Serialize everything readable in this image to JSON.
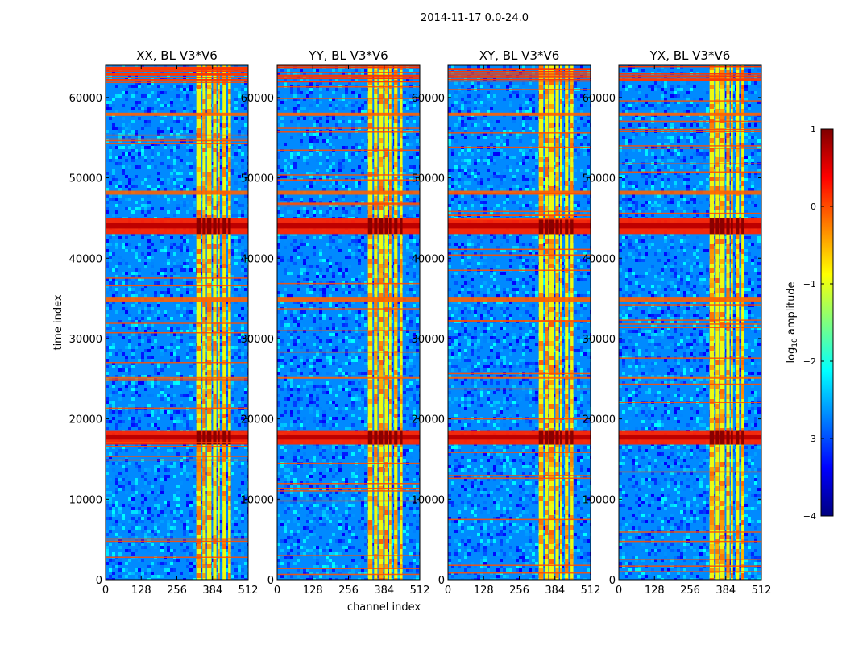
{
  "figure_title": "2014-11-17 0.0-24.0",
  "colormap": [
    "#00007f",
    "#0000ff",
    "#007fff",
    "#00ffff",
    "#7fff7f",
    "#ffff00",
    "#ff7f00",
    "#ff0000",
    "#7f0000"
  ],
  "chart_data": [
    {
      "type": "heatmap",
      "title": "XX, BL V3*V6",
      "xlabel": "",
      "ylabel": "time index",
      "xlim": [
        0,
        512
      ],
      "ylim": [
        0,
        64000
      ],
      "xticks": [
        "0",
        "128",
        "256",
        "384",
        "512"
      ],
      "yticks": [
        "0",
        "10000",
        "20000",
        "30000",
        "40000",
        "50000",
        "60000"
      ],
      "value_label": "log10 amplitude",
      "background_level": -2.7,
      "band_columns": [
        [
          326,
          342
        ],
        [
          348,
          360
        ],
        [
          364,
          380
        ],
        [
          386,
          398
        ],
        [
          402,
          410
        ],
        [
          420,
          432
        ],
        [
          440,
          450
        ]
      ],
      "rfi_rows": [
        [
          16800,
          18600
        ],
        [
          43000,
          45000
        ],
        [
          34600,
          35200
        ],
        [
          47900,
          48400
        ],
        [
          57700,
          58100
        ],
        [
          25000,
          25300
        ]
      ],
      "rfi_color_band": [
        [
          16800,
          18600
        ],
        [
          43000,
          45000
        ]
      ]
    },
    {
      "type": "heatmap",
      "title": "YY, BL V3*V6",
      "xlabel": "channel index",
      "ylabel": "",
      "xlim": [
        0,
        512
      ],
      "ylim": [
        0,
        64000
      ],
      "xticks": [
        "0",
        "128",
        "256",
        "384",
        "512"
      ],
      "yticks": [
        "0",
        "10000",
        "20000",
        "30000",
        "40000",
        "50000",
        "60000"
      ],
      "value_label": "log10 amplitude",
      "background_level": -2.7,
      "band_columns": [
        [
          326,
          342
        ],
        [
          348,
          360
        ],
        [
          364,
          380
        ],
        [
          386,
          398
        ],
        [
          402,
          410
        ],
        [
          420,
          432
        ],
        [
          440,
          450
        ]
      ],
      "rfi_rows": [
        [
          16800,
          18600
        ],
        [
          43000,
          45000
        ],
        [
          34600,
          35200
        ],
        [
          47900,
          48400
        ],
        [
          57700,
          58100
        ],
        [
          25000,
          25300
        ]
      ],
      "rfi_color_band": [
        [
          16800,
          18600
        ],
        [
          43000,
          45000
        ]
      ]
    },
    {
      "type": "heatmap",
      "title": "XY, BL V3*V6",
      "xlabel": "",
      "ylabel": "",
      "xlim": [
        0,
        512
      ],
      "ylim": [
        0,
        64000
      ],
      "xticks": [
        "0",
        "128",
        "256",
        "384",
        "512"
      ],
      "yticks": [
        "0",
        "10000",
        "20000",
        "30000",
        "40000",
        "50000",
        "60000"
      ],
      "value_label": "log10 amplitude",
      "background_level": -2.7,
      "band_columns": [
        [
          326,
          342
        ],
        [
          348,
          360
        ],
        [
          364,
          380
        ],
        [
          386,
          398
        ],
        [
          402,
          410
        ],
        [
          420,
          432
        ],
        [
          440,
          450
        ]
      ],
      "rfi_rows": [
        [
          16800,
          18600
        ],
        [
          43000,
          45000
        ],
        [
          34600,
          35200
        ],
        [
          47900,
          48400
        ],
        [
          57700,
          58100
        ],
        [
          25000,
          25300
        ]
      ],
      "rfi_color_band": [
        [
          16800,
          18600
        ],
        [
          43000,
          45000
        ]
      ]
    },
    {
      "type": "heatmap",
      "title": "YX, BL V3*V6",
      "xlabel": "",
      "ylabel": "",
      "xlim": [
        0,
        512
      ],
      "ylim": [
        0,
        64000
      ],
      "xticks": [
        "0",
        "128",
        "256",
        "384",
        "512"
      ],
      "yticks": [
        "0",
        "10000",
        "20000",
        "30000",
        "40000",
        "50000",
        "60000"
      ],
      "value_label": "log10 amplitude",
      "background_level": -2.7,
      "band_columns": [
        [
          326,
          342
        ],
        [
          348,
          360
        ],
        [
          364,
          380
        ],
        [
          386,
          398
        ],
        [
          402,
          410
        ],
        [
          420,
          432
        ],
        [
          440,
          450
        ]
      ],
      "rfi_rows": [
        [
          16800,
          18600
        ],
        [
          43000,
          45000
        ],
        [
          34600,
          35200
        ],
        [
          47900,
          48400
        ],
        [
          57700,
          58100
        ],
        [
          25000,
          25300
        ]
      ],
      "rfi_color_band": [
        [
          16800,
          18600
        ],
        [
          43000,
          45000
        ]
      ]
    }
  ],
  "colorbar": {
    "label": "log10 amplitude",
    "label_main": "log",
    "label_sub": "10",
    "label_rest": " amplitude",
    "min": -4,
    "max": 1,
    "ticks": [
      {
        "value": 1,
        "label": "1"
      },
      {
        "value": 0,
        "label": "0"
      },
      {
        "value": -1,
        "label": "−1"
      },
      {
        "value": -2,
        "label": "−2"
      },
      {
        "value": -3,
        "label": "−3"
      },
      {
        "value": -4,
        "label": "−4"
      }
    ]
  }
}
